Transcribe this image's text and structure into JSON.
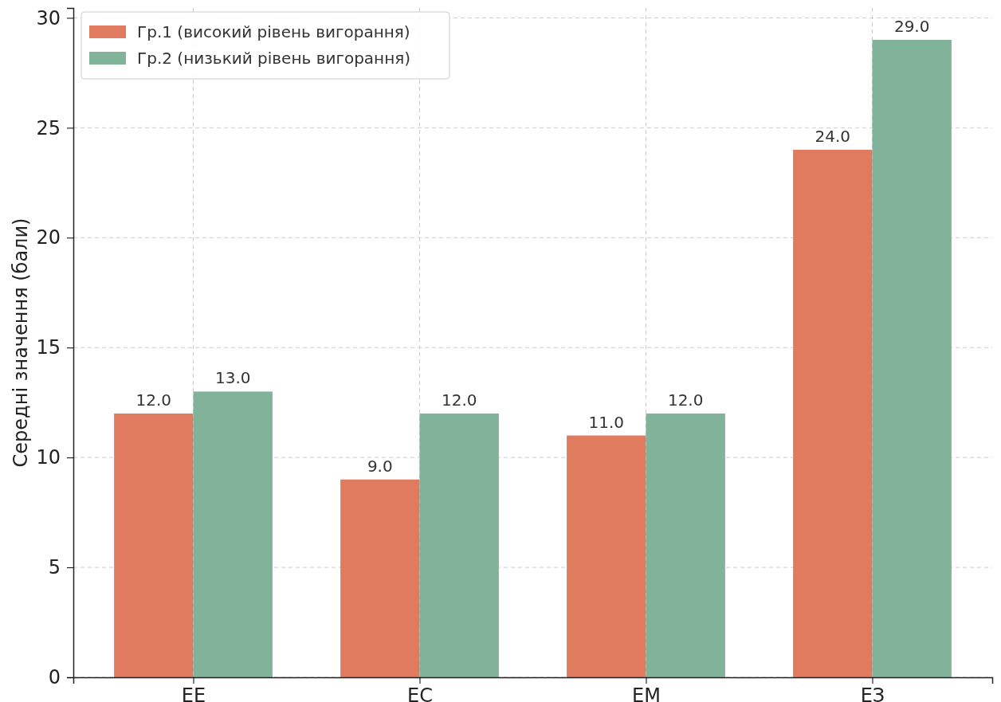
{
  "chart_data": {
    "type": "bar",
    "ylabel": "Середні значення (бали)",
    "categories": [
      "ЕЕ",
      "ЕС",
      "ЕМ",
      "ЕЗ"
    ],
    "series": [
      {
        "name": "Гр.1 (високий рівень вигорання)",
        "color": "#e07b5f",
        "values": [
          12,
          9,
          11,
          24
        ],
        "value_labels": [
          "12.0",
          "9.0",
          "11.0",
          "24.0"
        ]
      },
      {
        "name": "Гр.2 (низький рівень вигорання)",
        "color": "#80b39a",
        "values": [
          13,
          12,
          12,
          29
        ],
        "value_labels": [
          "13.0",
          "12.0",
          "12.0",
          "29.0"
        ]
      }
    ],
    "ylim": [
      0,
      30.45
    ],
    "yticks": [
      0,
      5,
      10,
      15,
      20,
      25,
      30
    ],
    "grid": true,
    "legend": "top left"
  }
}
